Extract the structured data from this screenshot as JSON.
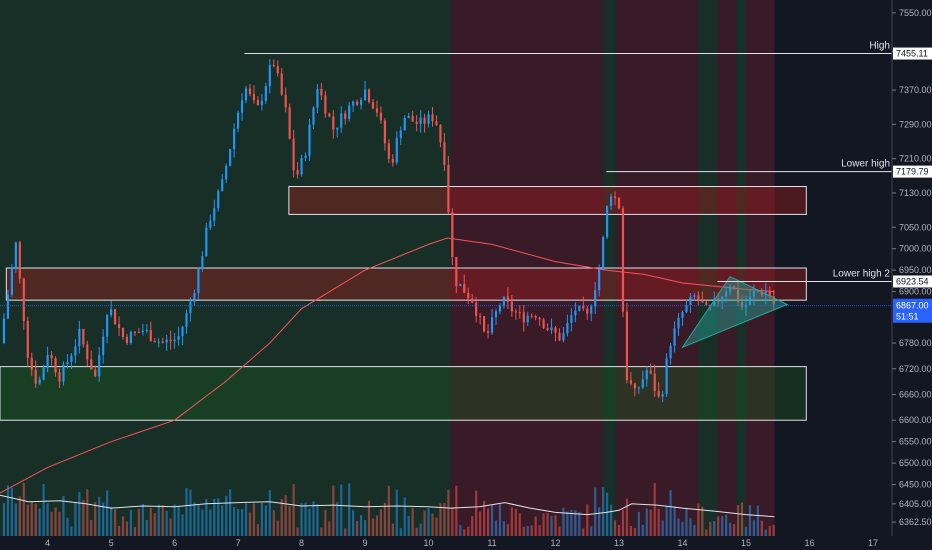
{
  "chart_data": {
    "type": "candlestick",
    "title": "",
    "xlabel": "",
    "ylabel": "",
    "ylim": [
      6330,
      7580
    ],
    "y_ticks": [
      7550,
      7460,
      7370,
      7290,
      7210,
      7130,
      7050,
      7000,
      6950,
      6900,
      6780,
      6720,
      6660,
      6600,
      6550,
      6500,
      6450,
      6405,
      6362.5
    ],
    "y_tick_labels": [
      "7550.00",
      "7460.00",
      "7370.00",
      "7290.00",
      "7210.00",
      "7130.00",
      "7050.00",
      "7000.00",
      "6950.00",
      "6900.00",
      "6780.00",
      "6720.00",
      "6660.00",
      "6600.00",
      "6550.00",
      "6500.00",
      "6450.00",
      "6405.00",
      "6362.50"
    ],
    "x_ticks": [
      4,
      5,
      6,
      7,
      8,
      9,
      10,
      11,
      12,
      13,
      14,
      15,
      16,
      17
    ],
    "x_tick_labels": [
      "4",
      "5",
      "6",
      "7",
      "8",
      "9",
      "10",
      "11",
      "12",
      "13",
      "14",
      "15",
      "16",
      "17"
    ],
    "xlim": [
      3.25,
      17.3
    ],
    "grid": false,
    "background": "#131722",
    "up_color": "#2196f3",
    "down_color": "#ef5350",
    "ma_color": "#f7525f",
    "annotations": [
      {
        "label": "High",
        "value": 7455.11,
        "value_label": "7455.11",
        "x_start": 7.1
      },
      {
        "label": "Lower high",
        "value": 7179.79,
        "value_label": "7179.79",
        "x_start": 12.8
      },
      {
        "label": "Lower high 2",
        "value": 6923.54,
        "value_label": "6923.54",
        "x_start": 14.55
      }
    ],
    "current_price": {
      "value": 6867.0,
      "label": "6867.00",
      "secondary_label": "51:51"
    },
    "zones": [
      {
        "name": "resistance-upper",
        "x_start": 7.8,
        "x_end": 15.95,
        "y_low": 7080,
        "y_high": 7145,
        "color": "#b71c1c"
      },
      {
        "name": "resistance-lower",
        "x_start": 3.35,
        "x_end": 15.95,
        "y_low": 6880,
        "y_high": 6955,
        "color": "#b71c1c"
      },
      {
        "name": "support",
        "x_start": 3.25,
        "x_end": 15.95,
        "y_low": 6600,
        "y_high": 6725,
        "color": "#1b5e20"
      }
    ],
    "session_bands": [
      {
        "x_start": 3.25,
        "x_end": 10.35,
        "color": "#1a3a2a"
      },
      {
        "x_start": 10.35,
        "x_end": 12.75,
        "color": "#4a1e2a"
      },
      {
        "x_start": 12.75,
        "x_end": 12.95,
        "color": "#1a3a2a"
      },
      {
        "x_start": 12.95,
        "x_end": 14.25,
        "color": "#4a1e2a"
      },
      {
        "x_start": 14.25,
        "x_end": 14.55,
        "color": "#1a3a2a"
      },
      {
        "x_start": 14.55,
        "x_end": 14.85,
        "color": "#4a1e2a"
      },
      {
        "x_start": 14.85,
        "x_end": 15.0,
        "color": "#1a3a2a"
      },
      {
        "x_start": 15.0,
        "x_end": 15.45,
        "color": "#4a1e2a"
      }
    ],
    "triangle": {
      "points": [
        [
          14.0,
          6770
        ],
        [
          14.75,
          6935
        ],
        [
          15.65,
          6870
        ]
      ],
      "color": "#26a69a"
    },
    "ohlc_keypoints": [
      [
        3.25,
        6780
      ],
      [
        3.5,
        7010
      ],
      [
        3.7,
        6740
      ],
      [
        3.85,
        6680
      ],
      [
        4.0,
        6760
      ],
      [
        4.2,
        6700
      ],
      [
        4.5,
        6800
      ],
      [
        4.75,
        6700
      ],
      [
        4.95,
        6870
      ],
      [
        5.2,
        6790
      ],
      [
        5.5,
        6810
      ],
      [
        5.8,
        6780
      ],
      [
        6.05,
        6790
      ],
      [
        6.2,
        6850
      ],
      [
        6.35,
        6930
      ],
      [
        6.55,
        7070
      ],
      [
        6.75,
        7150
      ],
      [
        6.95,
        7290
      ],
      [
        7.1,
        7380
      ],
      [
        7.3,
        7320
      ],
      [
        7.55,
        7440
      ],
      [
        7.75,
        7320
      ],
      [
        7.9,
        7160
      ],
      [
        8.05,
        7220
      ],
      [
        8.25,
        7380
      ],
      [
        8.5,
        7280
      ],
      [
        8.75,
        7330
      ],
      [
        9.0,
        7370
      ],
      [
        9.2,
        7320
      ],
      [
        9.4,
        7190
      ],
      [
        9.6,
        7310
      ],
      [
        9.85,
        7290
      ],
      [
        10.1,
        7310
      ],
      [
        10.25,
        7210
      ],
      [
        10.4,
        6930
      ],
      [
        10.7,
        6880
      ],
      [
        10.9,
        6790
      ],
      [
        11.15,
        6880
      ],
      [
        11.45,
        6840
      ],
      [
        11.7,
        6850
      ],
      [
        11.9,
        6810
      ],
      [
        12.1,
        6790
      ],
      [
        12.3,
        6860
      ],
      [
        12.5,
        6840
      ],
      [
        12.7,
        6960
      ],
      [
        12.85,
        7140
      ],
      [
        13.0,
        7100
      ],
      [
        13.1,
        6710
      ],
      [
        13.25,
        6660
      ],
      [
        13.45,
        6720
      ],
      [
        13.65,
        6640
      ],
      [
        13.8,
        6780
      ],
      [
        14.0,
        6850
      ],
      [
        14.2,
        6890
      ],
      [
        14.4,
        6850
      ],
      [
        14.6,
        6890
      ],
      [
        14.75,
        6920
      ],
      [
        14.95,
        6860
      ],
      [
        15.15,
        6900
      ],
      [
        15.35,
        6900
      ],
      [
        15.45,
        6867
      ]
    ],
    "ma_points": [
      [
        3.25,
        6430
      ],
      [
        4.0,
        6490
      ],
      [
        5.0,
        6550
      ],
      [
        6.0,
        6600
      ],
      [
        6.8,
        6690
      ],
      [
        7.5,
        6780
      ],
      [
        8.0,
        6860
      ],
      [
        9.0,
        6950
      ],
      [
        10.0,
        7010
      ],
      [
        10.3,
        7025
      ],
      [
        11.0,
        7010
      ],
      [
        12.0,
        6970
      ],
      [
        12.8,
        6950
      ],
      [
        13.4,
        6940
      ],
      [
        14.0,
        6920
      ],
      [
        15.0,
        6905
      ],
      [
        15.45,
        6900
      ]
    ],
    "volume_line_points": [
      [
        3.25,
        6425
      ],
      [
        3.7,
        6410
      ],
      [
        4.2,
        6412
      ],
      [
        4.6,
        6405
      ],
      [
        5.0,
        6395
      ],
      [
        5.5,
        6400
      ],
      [
        6.0,
        6398
      ],
      [
        6.5,
        6405
      ],
      [
        7.0,
        6408
      ],
      [
        7.5,
        6410
      ],
      [
        8.0,
        6400
      ],
      [
        8.5,
        6402
      ],
      [
        9.0,
        6398
      ],
      [
        9.5,
        6400
      ],
      [
        10.0,
        6398
      ],
      [
        10.35,
        6395
      ],
      [
        10.8,
        6398
      ],
      [
        11.2,
        6408
      ],
      [
        11.6,
        6395
      ],
      [
        12.0,
        6385
      ],
      [
        12.5,
        6380
      ],
      [
        12.8,
        6385
      ],
      [
        13.0,
        6390
      ],
      [
        13.2,
        6405
      ],
      [
        13.6,
        6402
      ],
      [
        14.0,
        6395
      ],
      [
        14.5,
        6388
      ],
      [
        15.0,
        6380
      ],
      [
        15.45,
        6375
      ]
    ]
  }
}
